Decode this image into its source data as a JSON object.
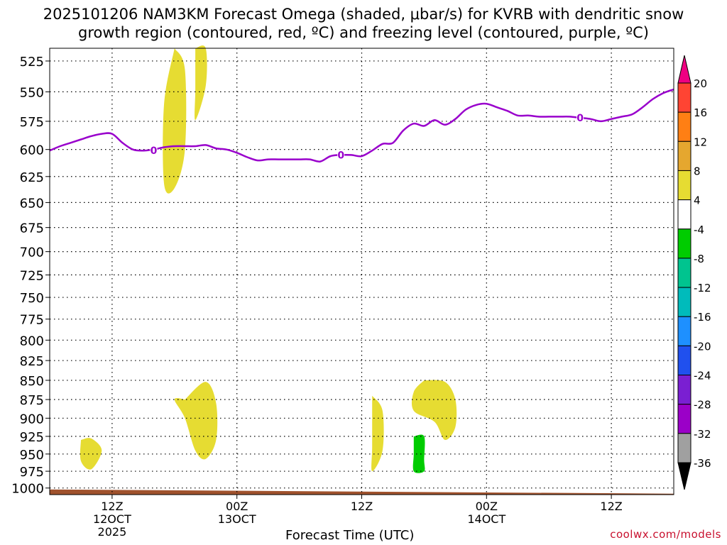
{
  "title_line1": "2025101206 NAM3KM Forecast Omega (shaded, μbar/s) for KVRB with dendritic snow",
  "title_line2": "growth region (contoured, red, ºC) and freezing level (contoured, purple, ºC)",
  "credit": "coolwx.com/models",
  "chart_data": {
    "type": "time-height",
    "title": "2025101206 NAM3KM Forecast Omega (shaded, μbar/s) for KVRB with dendritic snow growth region (contoured, red, ºC) and freezing level (contoured, purple, ºC)",
    "xlabel": "Forecast Time (UTC)",
    "ylabel": "",
    "x_unit": "hours from 2025-10-12 06Z",
    "xlim": [
      0,
      60
    ],
    "ylim": [
      515,
      1010
    ],
    "y_scale": "log-pressure",
    "y_ticks": [
      525,
      550,
      575,
      600,
      625,
      650,
      675,
      700,
      725,
      750,
      775,
      800,
      825,
      850,
      875,
      900,
      925,
      950,
      975,
      1000
    ],
    "x_ticks": [
      {
        "x": 6,
        "label": "12Z",
        "sub": "12OCT",
        "year": "2025"
      },
      {
        "x": 18,
        "label": "00Z",
        "sub": "13OCT",
        "year": ""
      },
      {
        "x": 30,
        "label": "12Z",
        "sub": "",
        "year": ""
      },
      {
        "x": 42,
        "label": "00Z",
        "sub": "14OCT",
        "year": ""
      },
      {
        "x": 54,
        "label": "12Z",
        "sub": "",
        "year": ""
      }
    ],
    "grid": true,
    "freezing_level": {
      "name": "0",
      "color": "#9900cc",
      "points": [
        [
          0,
          601
        ],
        [
          1,
          597
        ],
        [
          2,
          594
        ],
        [
          3,
          591
        ],
        [
          4,
          588
        ],
        [
          5,
          586
        ],
        [
          6,
          586
        ],
        [
          7,
          594
        ],
        [
          8,
          600
        ],
        [
          9,
          601
        ],
        [
          10,
          600
        ],
        [
          11,
          598
        ],
        [
          12,
          597
        ],
        [
          13,
          597
        ],
        [
          14,
          597
        ],
        [
          15,
          596
        ],
        [
          16,
          599
        ],
        [
          17,
          600
        ],
        [
          18,
          603
        ],
        [
          19,
          607
        ],
        [
          20,
          610
        ],
        [
          21,
          609
        ],
        [
          22,
          609
        ],
        [
          23,
          609
        ],
        [
          24,
          609
        ],
        [
          25,
          609
        ],
        [
          26,
          611
        ],
        [
          27,
          606
        ],
        [
          28,
          605
        ],
        [
          29,
          605
        ],
        [
          30,
          606
        ],
        [
          31,
          601
        ],
        [
          32,
          595
        ],
        [
          33,
          594
        ],
        [
          34,
          583
        ],
        [
          35,
          577
        ],
        [
          36,
          579
        ],
        [
          37,
          574
        ],
        [
          38,
          578
        ],
        [
          39,
          573
        ],
        [
          40,
          565
        ],
        [
          41,
          561
        ],
        [
          42,
          560
        ],
        [
          43,
          563
        ],
        [
          44,
          566
        ],
        [
          45,
          570
        ],
        [
          46,
          570
        ],
        [
          47,
          571
        ],
        [
          48,
          571
        ],
        [
          49,
          571
        ],
        [
          50,
          571
        ],
        [
          51,
          572
        ],
        [
          52,
          573
        ],
        [
          53,
          575
        ],
        [
          54,
          573
        ],
        [
          55,
          571
        ],
        [
          56,
          569
        ],
        [
          57,
          563
        ],
        [
          58,
          556
        ],
        [
          59,
          551
        ],
        [
          60,
          548
        ]
      ],
      "labels": [
        [
          10,
          601
        ],
        [
          28,
          605
        ],
        [
          51,
          572
        ]
      ]
    },
    "omega_regions": [
      {
        "level": "4 to 8",
        "color": "#e6dc32",
        "points": [
          [
            12,
            515
          ],
          [
            13,
            532
          ],
          [
            13,
            600
          ],
          [
            12,
            636
          ],
          [
            11,
            632
          ],
          [
            11,
            560
          ],
          [
            12,
            515
          ]
        ]
      },
      {
        "level": "4 to 8",
        "color": "#e6dc32",
        "points": [
          [
            14,
            515
          ],
          [
            15,
            515
          ],
          [
            15,
            545
          ],
          [
            14,
            574
          ],
          [
            14,
            548
          ],
          [
            14,
            515
          ]
        ]
      },
      {
        "level": "4 to 8",
        "color": "#e6dc32",
        "points": [
          [
            3,
            930
          ],
          [
            4,
            928
          ],
          [
            5,
            945
          ],
          [
            4,
            972
          ],
          [
            3,
            960
          ],
          [
            3,
            930
          ]
        ]
      },
      {
        "level": "4 to 8",
        "color": "#e6dc32",
        "points": [
          [
            13,
            875
          ],
          [
            15,
            852
          ],
          [
            16,
            880
          ],
          [
            16,
            930
          ],
          [
            15,
            957
          ],
          [
            14,
            945
          ],
          [
            13,
            900
          ],
          [
            12,
            875
          ],
          [
            13,
            875
          ]
        ]
      },
      {
        "level": "4 to 8",
        "color": "#e6dc32",
        "points": [
          [
            31,
            870
          ],
          [
            32,
            890
          ],
          [
            32,
            945
          ],
          [
            31,
            975
          ],
          [
            31,
            940
          ],
          [
            31,
            890
          ],
          [
            31,
            870
          ]
        ]
      },
      {
        "level": "4 to 8",
        "color": "#e6dc32",
        "points": [
          [
            36,
            850
          ],
          [
            38,
            852
          ],
          [
            39,
            875
          ],
          [
            39,
            912
          ],
          [
            38,
            930
          ],
          [
            37,
            905
          ],
          [
            35,
            890
          ],
          [
            35,
            865
          ],
          [
            36,
            850
          ]
        ]
      },
      {
        "level": "-4 to -8",
        "color": "#00cc00",
        "points": [
          [
            35,
            925
          ],
          [
            36,
            925
          ],
          [
            36,
            958
          ],
          [
            36,
            975
          ],
          [
            35,
            975
          ],
          [
            35,
            950
          ],
          [
            35,
            925
          ]
        ]
      }
    ],
    "terrain_color": "#a0522d",
    "colorbar": {
      "ticks": [
        "20",
        "16",
        "12",
        "8",
        "4",
        "-4",
        "-8",
        "-12",
        "-16",
        "-20",
        "-24",
        "-28",
        "-32",
        "-36"
      ],
      "colors": [
        "#ef0082",
        "#ff4433",
        "#ff7f14",
        "#e5a72f",
        "#e6dc32",
        "#ffffff",
        "#00cc00",
        "#00c48f",
        "#00bbbb",
        "#1e90ff",
        "#2050ee",
        "#7a1fd2",
        "#9b00c8",
        "#a0a0a0",
        "#000000"
      ]
    }
  }
}
